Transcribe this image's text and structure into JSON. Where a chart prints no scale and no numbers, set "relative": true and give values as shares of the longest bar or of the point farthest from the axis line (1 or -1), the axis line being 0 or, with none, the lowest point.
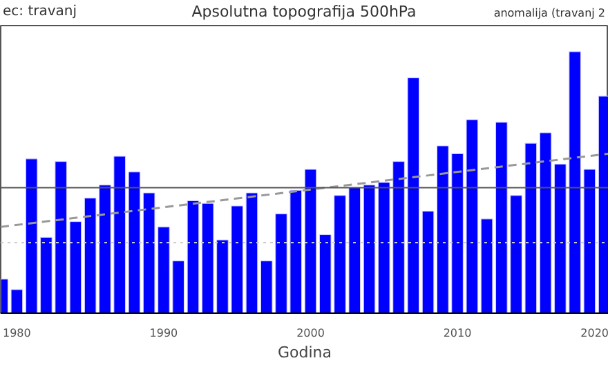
{
  "chart_data": {
    "type": "bar",
    "title": "Apsolutna topografija 500hPa",
    "xlabel": "Godina",
    "relative": true,
    "annotations": [
      "ec: travanj",
      "anomalija (travanj 2"
    ],
    "x": [
      1979,
      1980,
      1981,
      1982,
      1983,
      1984,
      1985,
      1986,
      1987,
      1988,
      1989,
      1990,
      1991,
      1992,
      1993,
      1994,
      1995,
      1996,
      1997,
      1998,
      1999,
      2000,
      2001,
      2002,
      2003,
      2004,
      2005,
      2006,
      2007,
      2008,
      2009,
      2010,
      2011,
      2012,
      2013,
      2014,
      2015,
      2016,
      2017,
      2018,
      2019,
      2020
    ],
    "xlim": [
      1978.9,
      2020.3
    ],
    "xticks": [
      1980,
      1990,
      2000,
      2010,
      2020
    ],
    "series": [
      {
        "color": "#0000ff",
        "values": [
          0.13,
          0.09,
          0.59,
          0.29,
          0.58,
          0.35,
          0.44,
          0.49,
          0.6,
          0.54,
          0.46,
          0.33,
          0.2,
          0.43,
          0.42,
          0.28,
          0.41,
          0.46,
          0.2,
          0.38,
          0.47,
          0.55,
          0.3,
          0.45,
          0.48,
          0.49,
          0.5,
          0.58,
          0.9,
          0.39,
          0.64,
          0.61,
          0.74,
          0.36,
          0.73,
          0.45,
          0.65,
          0.69,
          0.57,
          1.0,
          0.55,
          0.83
        ]
      },
      {
        "type": "line",
        "color": "#999999",
        "line_style": "dashed",
        "x": [
          1978.9,
          2020.3
        ],
        "values": [
          0.33,
          0.61
        ]
      }
    ],
    "ref_lines": [
      {
        "axis": "y",
        "value": 0.48,
        "color": "#555555",
        "line_style": "solid"
      },
      {
        "axis": "y",
        "value": 0.27,
        "color": "#cccccc",
        "line_style": "dotted"
      }
    ],
    "grid": false
  }
}
